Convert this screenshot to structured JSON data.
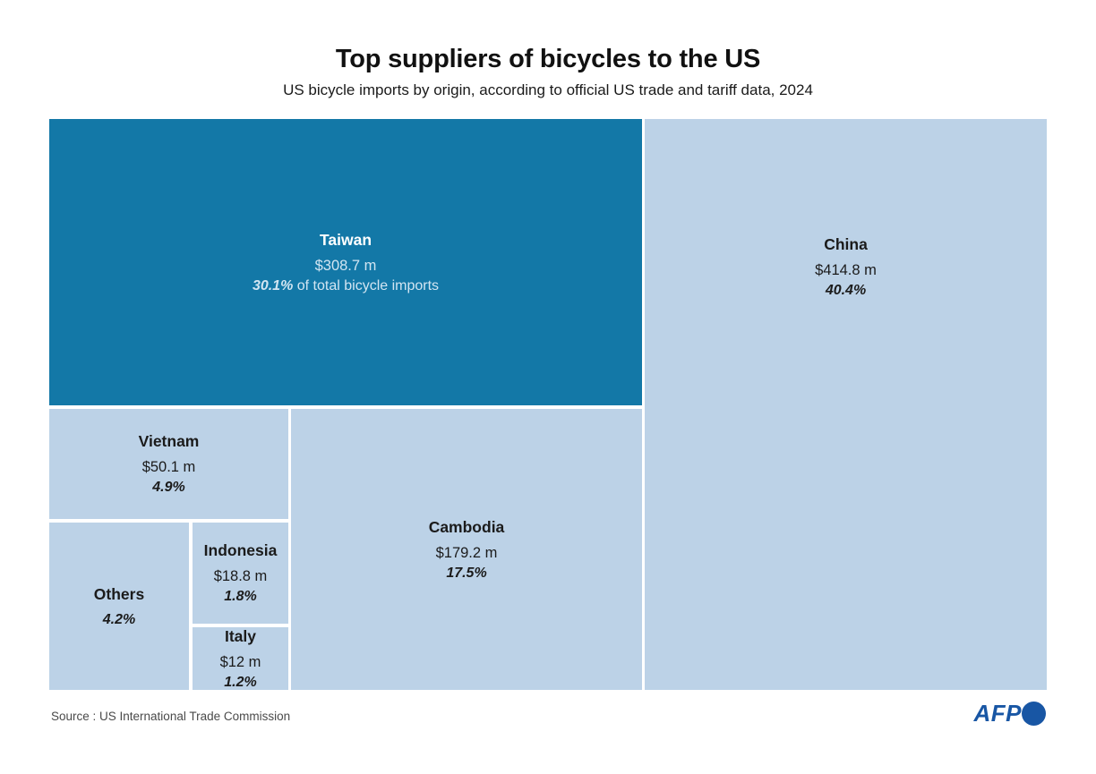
{
  "page": {
    "title": "Top suppliers of bicycles to the US",
    "subtitle": "US bicycle imports by origin, according to official US trade and tariff data, 2024",
    "source": "Source : US International Trade Commission",
    "logo_text": "AFP"
  },
  "colors": {
    "highlight_cell": "#1378A7",
    "regular_cell": "#BCD2E7",
    "afp_blue": "#1856A4"
  },
  "chart_data": {
    "type": "treemap",
    "title": "Top suppliers of bicycles to the US",
    "subtitle": "US bicycle imports by origin, according to official US trade and tariff data, 2024",
    "year": "2024",
    "highlighted_node": "Taiwan",
    "nodes": [
      {
        "name": "China",
        "value": 414.8,
        "value_label": "$414.8 m",
        "percent": 40.4,
        "percent_label": "40.4%"
      },
      {
        "name": "Taiwan",
        "value": 308.7,
        "value_label": "$308.7 m",
        "percent": 30.1,
        "percent_label": "30.1%",
        "percent_suffix": " of total bicycle imports"
      },
      {
        "name": "Cambodia",
        "value": 179.2,
        "value_label": "$179.2 m",
        "percent": 17.5,
        "percent_label": "17.5%"
      },
      {
        "name": "Vietnam",
        "value": 50.1,
        "value_label": "$50.1 m",
        "percent": 4.9,
        "percent_label": "4.9%"
      },
      {
        "name": "Indonesia",
        "value": 18.8,
        "value_label": "$18.8 m",
        "percent": 1.8,
        "percent_label": "1.8%"
      },
      {
        "name": "Italy",
        "value": 12,
        "value_label": "$12 m",
        "percent": 1.2,
        "percent_label": "1.2%"
      },
      {
        "name": "Others",
        "percent": 4.2,
        "percent_label": "4.2%"
      }
    ]
  }
}
